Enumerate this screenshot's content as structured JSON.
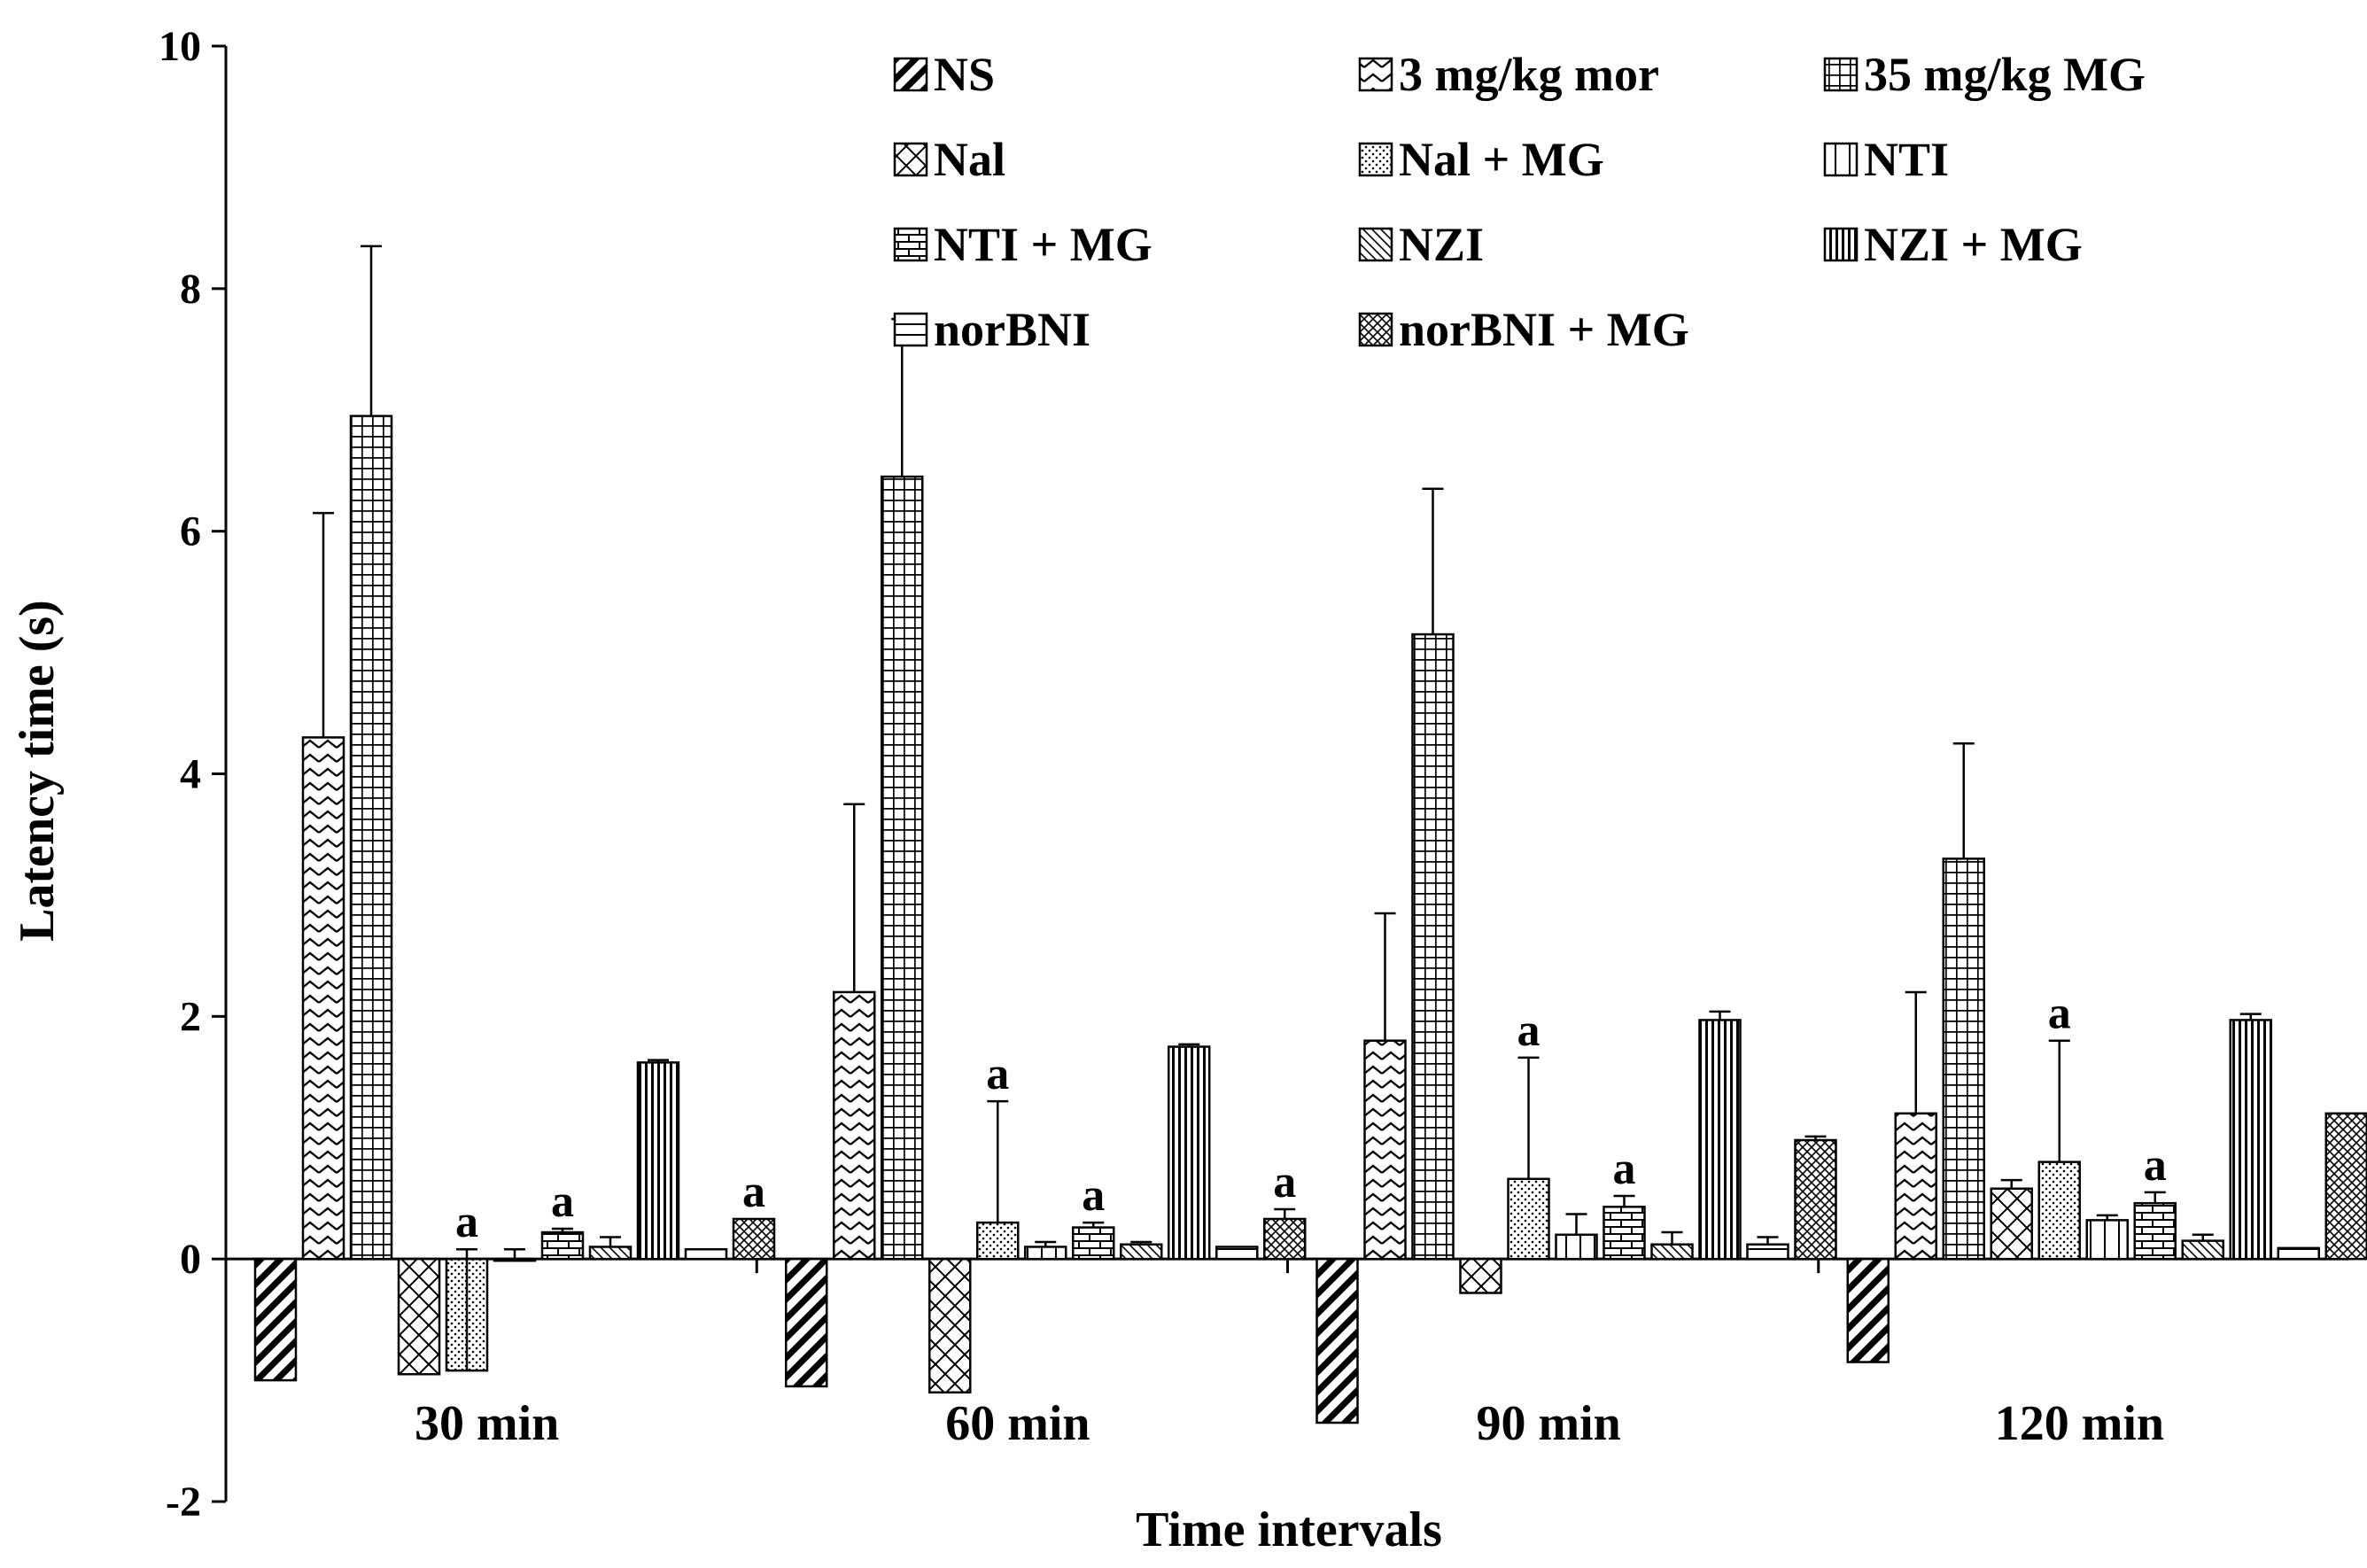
{
  "chart_data": {
    "type": "bar",
    "title": "",
    "xlabel": "Time intervals",
    "ylabel": "Latency time (s)",
    "ylim": [
      -2,
      10
    ],
    "yticks": [
      -2,
      0,
      2,
      4,
      6,
      8,
      10
    ],
    "legend_position": "top-right",
    "categories": [
      "30 min",
      "60 min",
      "90 min",
      "120 min"
    ],
    "series": [
      {
        "name": "NS",
        "pattern": "diag-bold",
        "values": [
          -1.0,
          -1.05,
          -1.35,
          -0.85
        ],
        "errors": [
          0,
          0,
          0,
          0
        ]
      },
      {
        "name": "3 mg/kg mor",
        "pattern": "zigzag",
        "values": [
          4.3,
          2.2,
          1.8,
          1.2
        ],
        "errors": [
          1.85,
          1.55,
          1.05,
          1.0
        ]
      },
      {
        "name": "35 mg/kg MG",
        "pattern": "grid",
        "values": [
          6.95,
          6.45,
          5.15,
          3.3
        ],
        "errors": [
          1.4,
          1.3,
          1.2,
          0.95
        ]
      },
      {
        "name": "Nal",
        "pattern": "diag-cross",
        "values": [
          -0.95,
          -1.1,
          -0.28,
          0.58
        ],
        "errors": [
          0,
          0,
          0,
          0.07
        ]
      },
      {
        "name": "Nal + MG",
        "pattern": "dots",
        "values": [
          -0.92,
          0.3,
          0.66,
          0.8
        ],
        "errors": [
          1.0,
          1.0,
          1.0,
          1.0
        ]
      },
      {
        "name": "NTI",
        "pattern": "vertical",
        "values": [
          0.0,
          0.1,
          0.2,
          0.32
        ],
        "errors": [
          0.08,
          0.04,
          0.17,
          0.04
        ]
      },
      {
        "name": "NTI + MG",
        "pattern": "brick",
        "values": [
          0.22,
          0.26,
          0.43,
          0.46
        ],
        "errors": [
          0.03,
          0.04,
          0.09,
          0.09
        ]
      },
      {
        "name": "NZI",
        "pattern": "diag-fine",
        "values": [
          0.1,
          0.12,
          0.12,
          0.15
        ],
        "errors": [
          0.08,
          0.02,
          0.1,
          0.05
        ]
      },
      {
        "name": "NZI + MG",
        "pattern": "vertical-dense",
        "values": [
          1.62,
          1.75,
          1.97,
          1.97
        ],
        "errors": [
          0.02,
          0.02,
          0.07,
          0.05
        ]
      },
      {
        "name": "norBNI",
        "pattern": "horizontal",
        "values": [
          0.08,
          0.1,
          0.12,
          0.09
        ],
        "errors": [
          0,
          0,
          0.06,
          0
        ]
      },
      {
        "name": "norBNI + MG",
        "pattern": "diag-cross-fine",
        "values": [
          0.33,
          0.33,
          0.98,
          1.2
        ],
        "errors": [
          0,
          0.08,
          0.03,
          0
        ]
      }
    ],
    "annotations": [
      {
        "category": "30 min",
        "series": "Nal + MG",
        "text": "a"
      },
      {
        "category": "30 min",
        "series": "NTI + MG",
        "text": "a"
      },
      {
        "category": "30 min",
        "series": "norBNI + MG",
        "text": "a"
      },
      {
        "category": "60 min",
        "series": "Nal + MG",
        "text": "a"
      },
      {
        "category": "60 min",
        "series": "NTI + MG",
        "text": "a"
      },
      {
        "category": "60 min",
        "series": "norBNI + MG",
        "text": "a"
      },
      {
        "category": "90 min",
        "series": "Nal + MG",
        "text": "a"
      },
      {
        "category": "90 min",
        "series": "NTI + MG",
        "text": "a"
      },
      {
        "category": "120 min",
        "series": "Nal + MG",
        "text": "a"
      },
      {
        "category": "120 min",
        "series": "NTI + MG",
        "text": "a"
      }
    ]
  }
}
